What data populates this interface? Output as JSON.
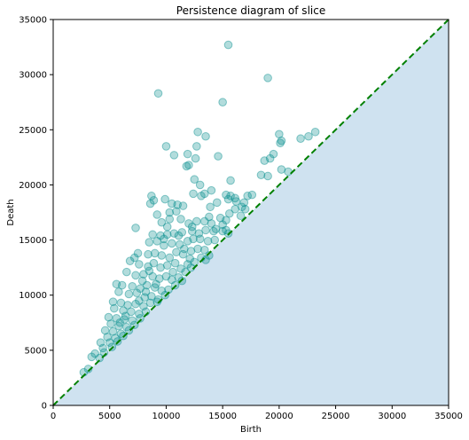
{
  "chart_data": {
    "type": "scatter",
    "title": "Persistence diagram of slice",
    "xlabel": "Birth",
    "ylabel": "Death",
    "xlim": [
      0,
      35000
    ],
    "ylim": [
      0,
      35000
    ],
    "xticks": [
      0,
      5000,
      10000,
      15000,
      20000,
      25000,
      30000,
      35000
    ],
    "yticks": [
      0,
      5000,
      10000,
      15000,
      20000,
      25000,
      30000,
      35000
    ],
    "grid": false,
    "colors": {
      "points": "#008b8b",
      "diagonal": "#008000",
      "fill": "#cfe2f0"
    },
    "diagonal": {
      "style": "dashed",
      "from": [
        0,
        0
      ],
      "to": [
        35000,
        35000
      ]
    },
    "shaded_region": "below-diagonal",
    "points": [
      [
        15500,
        32700
      ],
      [
        19000,
        29700
      ],
      [
        9300,
        28300
      ],
      [
        15000,
        27500
      ],
      [
        12800,
        24800
      ],
      [
        13500,
        24400
      ],
      [
        20000,
        24600
      ],
      [
        23200,
        24800
      ],
      [
        22600,
        24400
      ],
      [
        10000,
        23500
      ],
      [
        12700,
        23500
      ],
      [
        20200,
        24000
      ],
      [
        20100,
        23800
      ],
      [
        21900,
        24200
      ],
      [
        10700,
        22700
      ],
      [
        11900,
        22800
      ],
      [
        12600,
        22400
      ],
      [
        14600,
        22600
      ],
      [
        18700,
        22200
      ],
      [
        19500,
        22800
      ],
      [
        19200,
        22400
      ],
      [
        11800,
        21700
      ],
      [
        12000,
        21800
      ],
      [
        20200,
        21400
      ],
      [
        20800,
        21200
      ],
      [
        12500,
        20500
      ],
      [
        13000,
        20000
      ],
      [
        15700,
        20400
      ],
      [
        19000,
        20800
      ],
      [
        18400,
        20900
      ],
      [
        12400,
        19200
      ],
      [
        13100,
        19000
      ],
      [
        13400,
        19200
      ],
      [
        14000,
        19500
      ],
      [
        15300,
        19100
      ],
      [
        15700,
        19000
      ],
      [
        16100,
        18800
      ],
      [
        17200,
        19000
      ],
      [
        17600,
        19100
      ],
      [
        8700,
        19000
      ],
      [
        8600,
        18300
      ],
      [
        8900,
        18600
      ],
      [
        9900,
        18700
      ],
      [
        10500,
        18300
      ],
      [
        11000,
        18200
      ],
      [
        11500,
        18100
      ],
      [
        10900,
        17600
      ],
      [
        9200,
        17300
      ],
      [
        10300,
        17500
      ],
      [
        13900,
        18000
      ],
      [
        14500,
        18400
      ],
      [
        15500,
        18700
      ],
      [
        16200,
        18500
      ],
      [
        16700,
        18000
      ],
      [
        17000,
        17800
      ],
      [
        7300,
        16100
      ],
      [
        9600,
        16600
      ],
      [
        10100,
        16200
      ],
      [
        11300,
        16900
      ],
      [
        12000,
        16500
      ],
      [
        12700,
        16700
      ],
      [
        13400,
        16700
      ],
      [
        14000,
        16500
      ],
      [
        14800,
        17000
      ],
      [
        15600,
        17400
      ],
      [
        15300,
        16800
      ],
      [
        15000,
        16400
      ],
      [
        16600,
        17200
      ],
      [
        8800,
        15500
      ],
      [
        9500,
        15400
      ],
      [
        10100,
        15500
      ],
      [
        10700,
        15600
      ],
      [
        11400,
        15700
      ],
      [
        12300,
        15800
      ],
      [
        12900,
        15600
      ],
      [
        13500,
        15900
      ],
      [
        14200,
        15800
      ],
      [
        15000,
        15800
      ],
      [
        15500,
        15600
      ],
      [
        8500,
        14800
      ],
      [
        9200,
        14900
      ],
      [
        9800,
        14500
      ],
      [
        10500,
        14700
      ],
      [
        11200,
        14600
      ],
      [
        11900,
        14900
      ],
      [
        12400,
        15100
      ],
      [
        13000,
        15100
      ],
      [
        13700,
        14900
      ],
      [
        14300,
        15000
      ],
      [
        7500,
        13800
      ],
      [
        7200,
        13400
      ],
      [
        8400,
        13700
      ],
      [
        9000,
        13800
      ],
      [
        9600,
        13600
      ],
      [
        10300,
        13400
      ],
      [
        10900,
        13900
      ],
      [
        11500,
        13700
      ],
      [
        12200,
        14000
      ],
      [
        12800,
        14200
      ],
      [
        13400,
        14100
      ],
      [
        13800,
        13600
      ],
      [
        6800,
        13100
      ],
      [
        7600,
        12800
      ],
      [
        8400,
        12600
      ],
      [
        8900,
        12900
      ],
      [
        9500,
        12500
      ],
      [
        10100,
        12700
      ],
      [
        10800,
        12900
      ],
      [
        11300,
        12400
      ],
      [
        11900,
        12800
      ],
      [
        12500,
        13000
      ],
      [
        13100,
        13400
      ],
      [
        13500,
        13200
      ],
      [
        6500,
        12100
      ],
      [
        7300,
        11800
      ],
      [
        8000,
        11900
      ],
      [
        8800,
        11700
      ],
      [
        9400,
        11500
      ],
      [
        10000,
        11700
      ],
      [
        10500,
        11400
      ],
      [
        11100,
        11600
      ],
      [
        11700,
        12100
      ],
      [
        12200,
        12500
      ],
      [
        5600,
        11000
      ],
      [
        6100,
        10900
      ],
      [
        7000,
        10800
      ],
      [
        7700,
        10600
      ],
      [
        8300,
        10900
      ],
      [
        9000,
        10700
      ],
      [
        9600,
        10400
      ],
      [
        10200,
        10500
      ],
      [
        10800,
        10900
      ],
      [
        11400,
        11300
      ],
      [
        5800,
        10300
      ],
      [
        6700,
        10100
      ],
      [
        7400,
        10200
      ],
      [
        8100,
        9800
      ],
      [
        8700,
        9900
      ],
      [
        9300,
        9600
      ],
      [
        9900,
        10000
      ],
      [
        5300,
        9400
      ],
      [
        6000,
        9300
      ],
      [
        6600,
        9100
      ],
      [
        7300,
        9200
      ],
      [
        8000,
        9000
      ],
      [
        8600,
        9300
      ],
      [
        9200,
        9400
      ],
      [
        5400,
        8800
      ],
      [
        6200,
        8600
      ],
      [
        6900,
        8500
      ],
      [
        7600,
        8300
      ],
      [
        8200,
        8500
      ],
      [
        4900,
        8000
      ],
      [
        5600,
        7900
      ],
      [
        6300,
        7800
      ],
      [
        7000,
        7700
      ],
      [
        7700,
        7900
      ],
      [
        5100,
        7400
      ],
      [
        5800,
        7200
      ],
      [
        6500,
        7100
      ],
      [
        7200,
        7300
      ],
      [
        4600,
        6800
      ],
      [
        5300,
        6700
      ],
      [
        6000,
        6500
      ],
      [
        6700,
        6800
      ],
      [
        4800,
        6200
      ],
      [
        5500,
        6100
      ],
      [
        6200,
        6300
      ],
      [
        4200,
        5700
      ],
      [
        5000,
        5700
      ],
      [
        5700,
        5800
      ],
      [
        4400,
        5200
      ],
      [
        5200,
        5300
      ],
      [
        3700,
        4700
      ],
      [
        4500,
        4800
      ],
      [
        3400,
        4400
      ],
      [
        4100,
        4300
      ],
      [
        2700,
        3000
      ],
      [
        3100,
        3300
      ],
      [
        12300,
        16200
      ],
      [
        14400,
        16000
      ],
      [
        16100,
        17800
      ],
      [
        10300,
        16900
      ],
      [
        9800,
        15100
      ],
      [
        11600,
        14200
      ],
      [
        12100,
        13300
      ],
      [
        10600,
        12100
      ],
      [
        9100,
        11000
      ],
      [
        8200,
        10300
      ],
      [
        7600,
        9500
      ],
      [
        6400,
        8100
      ],
      [
        5900,
        7500
      ],
      [
        13800,
        17100
      ],
      [
        15300,
        15900
      ],
      [
        16900,
        18400
      ],
      [
        11100,
        15400
      ],
      [
        8500,
        12200
      ],
      [
        7900,
        11300
      ]
    ]
  }
}
